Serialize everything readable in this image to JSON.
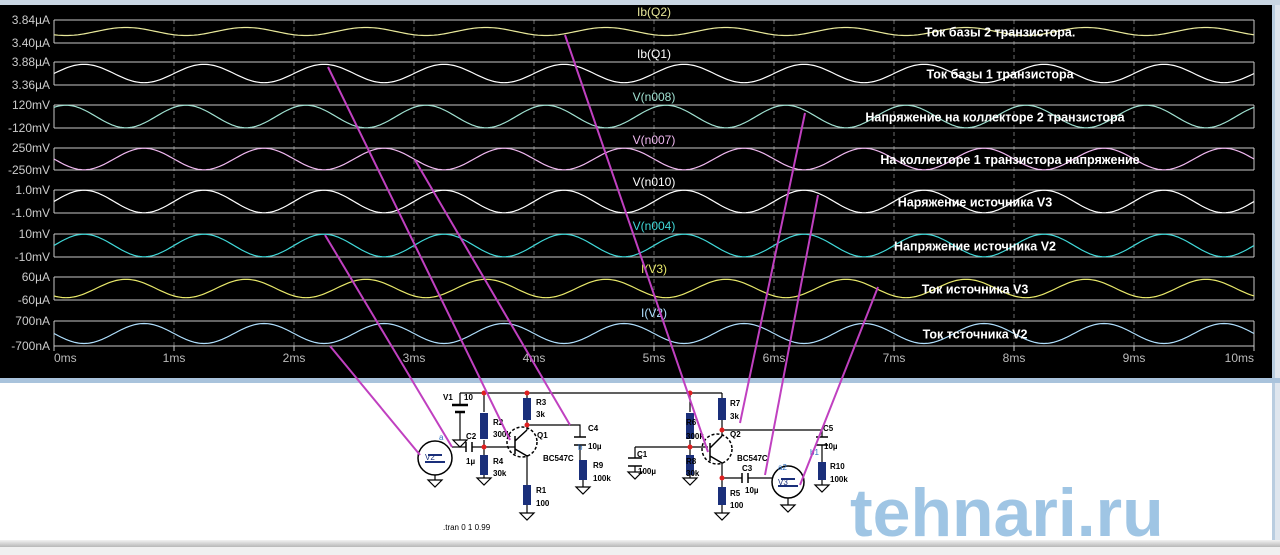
{
  "window": {
    "title": ""
  },
  "colors": {
    "background": "#000000",
    "grid": "#c8c8c8",
    "annotation_line": "#c040c0",
    "watermark": "#7fb2dc"
  },
  "chart_data": {
    "type": "line",
    "xlabel": "",
    "xlim": [
      0,
      10
    ],
    "x_ticks": [
      "0ms",
      "1ms",
      "2ms",
      "3ms",
      "4ms",
      "5ms",
      "6ms",
      "7ms",
      "8ms",
      "9ms",
      "10ms"
    ],
    "grid": true,
    "frequency_khz": 1,
    "panes": [
      {
        "name": "Ib(Q2)",
        "color": "#e8e89a",
        "y_top": "3.84µA",
        "y_bottom": "3.40µA",
        "amplitude_fraction": 0.35,
        "peak_time_ms": 0.6,
        "annotation": "Ток базы 2 транзистора."
      },
      {
        "name": "Ib(Q1)",
        "color": "#ffffff",
        "y_top": "3.88µA",
        "y_bottom": "3.36µA",
        "amplitude_fraction": 0.8,
        "peak_time_ms": 0.25,
        "annotation": "Ток базы 1 транзистора"
      },
      {
        "name": "V(n008)",
        "color": "#9fe0d0",
        "y_top": "120mV",
        "y_bottom": "-120mV",
        "amplitude_fraction": 0.98,
        "peak_time_ms": 0.1,
        "annotation": "Напряжение на коллекторе 2 транзистора"
      },
      {
        "name": "V(n007)",
        "color": "#f0b8f0",
        "y_top": "250mV",
        "y_bottom": "-250mV",
        "amplitude_fraction": 0.98,
        "peak_time_ms": 0.75,
        "annotation": "На коллекторе 1 транзистора напряжение"
      },
      {
        "name": "V(n010)",
        "color": "#ffffff",
        "y_top": "1.0mV",
        "y_bottom": "-1.0mV",
        "amplitude_fraction": 0.98,
        "peak_time_ms": 0.25,
        "annotation": "Наряжение  источника V3"
      },
      {
        "name": "V(n004)",
        "color": "#40d8d8",
        "y_top": "10mV",
        "y_bottom": "-10mV",
        "amplitude_fraction": 0.98,
        "peak_time_ms": 0.25,
        "annotation": "Напряжение источника V2"
      },
      {
        "name": "I(V3)",
        "color": "#e8e86a",
        "y_top": "60µA",
        "y_bottom": "-60µA",
        "amplitude_fraction": 0.8,
        "peak_time_ms": 0.6,
        "annotation": "Ток источника V3"
      },
      {
        "name": "I(V2)",
        "color": "#b0e0ff",
        "y_top": "700nA",
        "y_bottom": "-700nA",
        "amplitude_fraction": 0.8,
        "peak_time_ms": 0.75,
        "annotation": "Ток тсточника V2"
      }
    ]
  },
  "schematic": {
    "V1": {
      "name": "V1",
      "value": "10"
    },
    "V2": {
      "name": "V2",
      "node": "a"
    },
    "V3": {
      "name": "V3",
      "node": "a2"
    },
    "R1": {
      "name": "R1",
      "value": "100"
    },
    "R2": {
      "name": "R2",
      "value": "300k"
    },
    "R3": {
      "name": "R3",
      "value": "3k"
    },
    "R4": {
      "name": "R4",
      "value": "30k"
    },
    "R5": {
      "name": "R5",
      "value": "100"
    },
    "R6": {
      "name": "R6",
      "value": "300k"
    },
    "R7": {
      "name": "R7",
      "value": "3k"
    },
    "R8": {
      "name": "R8",
      "value": "30k"
    },
    "R9": {
      "name": "R9",
      "value": "100k"
    },
    "R10": {
      "name": "R10",
      "value": "100k"
    },
    "C1": {
      "name": "C1",
      "value": "100µ"
    },
    "C2": {
      "name": "C2",
      "value": "1µ"
    },
    "C3": {
      "name": "C3",
      "value": "10µ"
    },
    "C4": {
      "name": "C4",
      "value": "10µ"
    },
    "C5": {
      "name": "C5",
      "value": "10µ"
    },
    "Q1": {
      "name": "Q1",
      "model": "BC547C",
      "node": "b"
    },
    "Q2": {
      "name": "Q2",
      "model": "BC547C",
      "node": "b1"
    },
    "directive": ".tran 0 1 0.99"
  },
  "watermark": "tehnari.ru"
}
